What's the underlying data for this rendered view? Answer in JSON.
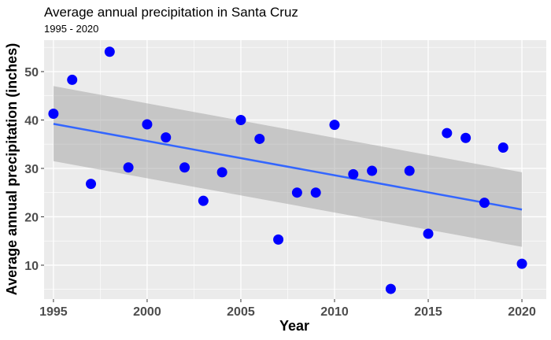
{
  "chart_data": {
    "type": "scatter",
    "title": "Average annual precipitation in Santa Cruz",
    "subtitle": "1995 - 2020",
    "xlabel": "Year",
    "ylabel": "Average annual precipitation (inches)",
    "xlim": [
      1994.5,
      2021.3
    ],
    "ylim": [
      3.0,
      56.5
    ],
    "x_ticks": [
      1995,
      2000,
      2005,
      2010,
      2015,
      2020
    ],
    "y_ticks": [
      10,
      20,
      30,
      40,
      50
    ],
    "grid": true,
    "legend": "none",
    "colors": {
      "panel": "#ebebeb",
      "grid": "#ffffff",
      "point": "#0000ff",
      "trend": "#3366ff",
      "band": "#999999"
    },
    "series": [
      {
        "x": [
          1995,
          1996,
          1997,
          1998,
          1999,
          2000,
          2001,
          2002,
          2003,
          2004,
          2005,
          2006,
          2007,
          2008,
          2009,
          2010,
          2011,
          2012,
          2013,
          2014,
          2015,
          2016,
          2017,
          2018,
          2019,
          2020
        ],
        "y": [
          41.3,
          48.3,
          26.8,
          54.1,
          30.2,
          39.1,
          36.4,
          30.2,
          23.3,
          29.2,
          40.0,
          36.1,
          15.3,
          25.0,
          25.0,
          39.0,
          28.8,
          29.5,
          5.1,
          29.5,
          16.5,
          37.3,
          36.3,
          22.9,
          34.3,
          10.3
        ]
      }
    ],
    "trend": {
      "type": "linear",
      "x": [
        1995,
        2020
      ],
      "y": [
        39.2,
        21.5
      ],
      "band_lower": [
        31.5,
        13.8
      ],
      "band_upper": [
        47.0,
        29.2
      ]
    }
  }
}
